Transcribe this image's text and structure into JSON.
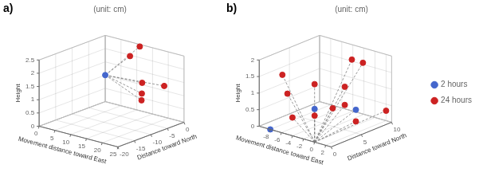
{
  "chart_data": [
    {
      "type": "scatter",
      "title": "(unit: cm)",
      "annotations": [
        "a)"
      ],
      "xlabel": "Movement distance toward East",
      "ylabel": "Distance toward North",
      "zlabel": "Height",
      "xlim": [
        0,
        25
      ],
      "ylim": [
        -20,
        0
      ],
      "zlim": [
        0,
        2.5
      ],
      "xticks": [
        0,
        5,
        10,
        15,
        20,
        25
      ],
      "yticks": [
        0,
        -5,
        -10,
        -15,
        -20
      ],
      "zticks": [
        0,
        0.5,
        1,
        1.5,
        2,
        2.5
      ],
      "grid": true,
      "series": [
        {
          "type": "line",
          "line_style": "dashed",
          "color": "gray",
          "values": [
            [
              [
                0,
                0,
                1.0
              ],
              [
                12,
                -1,
                2.5
              ]
            ],
            [
              [
                0,
                0,
                1.0
              ],
              [
                11,
                -3,
                2.2
              ]
            ],
            [
              [
                0,
                0,
                1.0
              ],
              [
                18,
                -6,
                1.55
              ]
            ],
            [
              [
                0,
                0,
                1.0
              ],
              [
                20,
                -8,
                1.3
              ]
            ],
            [
              [
                0,
                0,
                1.0
              ],
              [
                25,
                -6,
                1.65
              ]
            ],
            [
              [
                0,
                0,
                1.0
              ],
              [
                22,
                -10,
                1.2
              ]
            ]
          ]
        },
        {
          "name": "2 hours",
          "color": "#4466cc",
          "marker": "circle",
          "values": [
            [
              0,
              0,
              1.0
            ]
          ]
        },
        {
          "name": "24 hours",
          "color": "#cc2222",
          "marker": "circle",
          "values": [
            [
              12,
              -1,
              2.5
            ],
            [
              11,
              -3,
              2.2
            ],
            [
              18,
              -6,
              1.55
            ],
            [
              20,
              -8,
              1.3
            ],
            [
              25,
              -6,
              1.65
            ],
            [
              22,
              -10,
              1.2
            ]
          ]
        }
      ]
    },
    {
      "type": "scatter",
      "title": "(unit: cm)",
      "annotations": [
        "b)"
      ],
      "xlabel": "Movement distance toward East",
      "ylabel": "Distance toward North",
      "zlabel": "Height",
      "xlim": [
        -10,
        3
      ],
      "ylim": [
        0,
        10
      ],
      "zlim": [
        0,
        2
      ],
      "xticks": [
        -8,
        -6,
        -4,
        -2,
        0,
        2
      ],
      "yticks": [
        0,
        5,
        10
      ],
      "zticks": [
        0,
        0.5,
        1,
        1.5,
        2
      ],
      "grid": true,
      "legend": "right",
      "series": [
        {
          "type": "line",
          "line_style": "dashed",
          "color": "gray",
          "values": [
            [
              [
                0,
                0,
                0
              ],
              [
                0,
                0,
                1.0
              ]
            ],
            [
              [
                0,
                0,
                0
              ],
              [
                -8,
                0,
                0.0
              ]
            ],
            [
              [
                0,
                0,
                0
              ],
              [
                2,
                5,
                0.7
              ]
            ],
            [
              [
                0,
                0,
                0
              ],
              [
                -8,
                2,
                1.5
              ]
            ],
            [
              [
                0,
                0,
                0
              ],
              [
                -6,
                1,
                1.1
              ]
            ],
            [
              [
                0,
                0,
                0
              ],
              [
                -4,
                0,
                0.55
              ]
            ],
            [
              [
                0,
                0,
                0
              ],
              [
                -2,
                8,
                1.8
              ]
            ],
            [
              [
                0,
                0,
                0
              ],
              [
                0,
                8,
                1.8
              ]
            ],
            [
              [
                0,
                0,
                0
              ],
              [
                0,
                5,
                1.3
              ]
            ],
            [
              [
                0,
                0,
                0
              ],
              [
                0,
                3,
                0.8
              ]
            ],
            [
              [
                0,
                0,
                0
              ],
              [
                0,
                0,
                1.75
              ]
            ],
            [
              [
                0,
                0,
                0
              ],
              [
                0,
                0,
                0.8
              ]
            ],
            [
              [
                0,
                0,
                0
              ],
              [
                2,
                5,
                0.35
              ]
            ],
            [
              [
                0,
                0,
                0
              ],
              [
                2,
                10,
                0.3
              ]
            ],
            [
              [
                0,
                0,
                0
              ],
              [
                0,
                5,
                0.75
              ]
            ]
          ]
        },
        {
          "name": "2 hours",
          "color": "#4466cc",
          "marker": "circle",
          "values": [
            [
              0,
              0,
              1.0
            ],
            [
              -8,
              0,
              0.0
            ],
            [
              2,
              5,
              0.7
            ]
          ]
        },
        {
          "name": "24 hours",
          "color": "#cc2222",
          "marker": "circle",
          "values": [
            [
              -8,
              2,
              1.5
            ],
            [
              -6,
              1,
              1.1
            ],
            [
              -4,
              0,
              0.55
            ],
            [
              -2,
              8,
              1.8
            ],
            [
              0,
              8,
              1.8
            ],
            [
              0,
              5,
              1.3
            ],
            [
              0,
              3,
              0.8
            ],
            [
              0,
              0,
              1.75
            ],
            [
              0,
              0,
              0.8
            ],
            [
              2,
              5,
              0.35
            ],
            [
              2,
              10,
              0.3
            ],
            [
              0,
              5,
              0.75
            ]
          ]
        }
      ]
    }
  ]
}
